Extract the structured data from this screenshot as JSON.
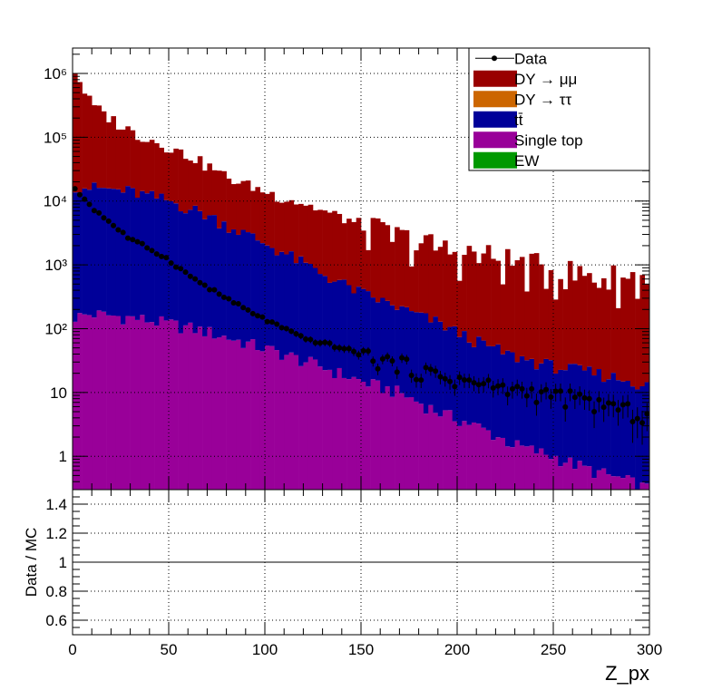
{
  "chart_data": {
    "type": "bar",
    "stacked": true,
    "log_y": true,
    "x_range": [
      0,
      300
    ],
    "bin_width": 2.5,
    "ylim": [
      0.3,
      2500000
    ],
    "grid": true,
    "legend_placement": "top-right",
    "xlabel": "Z_px",
    "ylabel_ratio": "Data / MC",
    "ratio_ylim": [
      0.5,
      1.5
    ],
    "x_ticks": [
      0,
      50,
      100,
      150,
      200,
      250,
      300
    ],
    "x_tick_labels": [
      "0",
      "50",
      "100",
      "150",
      "200",
      "250",
      "300"
    ],
    "y_ticks": [
      1,
      10,
      100,
      1000,
      10000,
      100000,
      1000000
    ],
    "y_tick_labels": [
      "1",
      "10",
      "10²",
      "10³",
      "10⁴",
      "10⁵",
      "10⁶"
    ],
    "ratio_ticks": [
      0.6,
      0.8,
      1.0,
      1.2,
      1.4
    ],
    "ratio_tick_labels": [
      "0.6",
      "0.8",
      "1",
      "1.2",
      "1.4"
    ],
    "legend": [
      {
        "label": "Data",
        "kind": "marker",
        "color": "#000000"
      },
      {
        "label": "DY → μμ",
        "kind": "fill",
        "color": "#990000"
      },
      {
        "label": "DY → ττ",
        "kind": "fill",
        "color": "#cc6600"
      },
      {
        "label": "tt̄",
        "kind": "fill",
        "color": "#000099"
      },
      {
        "label": "Single top",
        "kind": "fill",
        "color": "#990099"
      },
      {
        "label": "EW",
        "kind": "fill",
        "color": "#009900"
      }
    ],
    "series": [
      {
        "name": "Single top",
        "color": "#990099",
        "approx_curve": {
          "x": [
            0,
            10,
            20,
            30,
            50,
            70,
            90,
            110,
            130,
            150,
            170,
            190,
            210,
            230,
            250,
            270,
            290,
            300
          ],
          "y": [
            150,
            170,
            160,
            150,
            120,
            90,
            60,
            40,
            25,
            15,
            10,
            5,
            3,
            1.5,
            1,
            0.6,
            0.4,
            0.3
          ]
        }
      },
      {
        "name": "tt̄",
        "color": "#000099",
        "approx_curve": {
          "x": [
            0,
            10,
            20,
            30,
            50,
            70,
            90,
            110,
            130,
            150,
            170,
            190,
            210,
            230,
            250,
            270,
            290,
            300
          ],
          "y": [
            18000,
            16000,
            15000,
            14000,
            10000,
            6000,
            3000,
            1500,
            700,
            350,
            200,
            120,
            60,
            35,
            25,
            20,
            15,
            12
          ]
        }
      },
      {
        "name": "DY → μμ",
        "color": "#990000",
        "approx_curve": {
          "x": [
            0,
            2.5,
            10,
            20,
            30,
            40,
            50,
            60,
            70,
            80,
            90,
            100,
            120,
            140,
            160,
            180,
            200,
            220,
            240,
            260,
            280,
            300
          ],
          "y": [
            1400000,
            900000,
            300000,
            180000,
            110000,
            80000,
            60000,
            45000,
            30000,
            20000,
            15000,
            12000,
            8000,
            5000,
            3000,
            2000,
            1500,
            1200,
            900,
            700,
            600,
            600
          ]
        }
      },
      {
        "name": "Data",
        "color": "#000000",
        "approx_curve": {
          "x": [
            0,
            5,
            10,
            20,
            30,
            40,
            50,
            60,
            70,
            80,
            90,
            100,
            110,
            120,
            130,
            140,
            150,
            160,
            170,
            180,
            190,
            200,
            210,
            220,
            230,
            240,
            250,
            260,
            270,
            280,
            290,
            300
          ],
          "y": [
            16000,
            12000,
            8000,
            4500,
            2500,
            1800,
            1200,
            700,
            450,
            300,
            200,
            140,
            100,
            70,
            60,
            50,
            40,
            32,
            28,
            22,
            18,
            16,
            14,
            12,
            11,
            10,
            9,
            8,
            7,
            6,
            5,
            4
          ]
        }
      }
    ]
  }
}
